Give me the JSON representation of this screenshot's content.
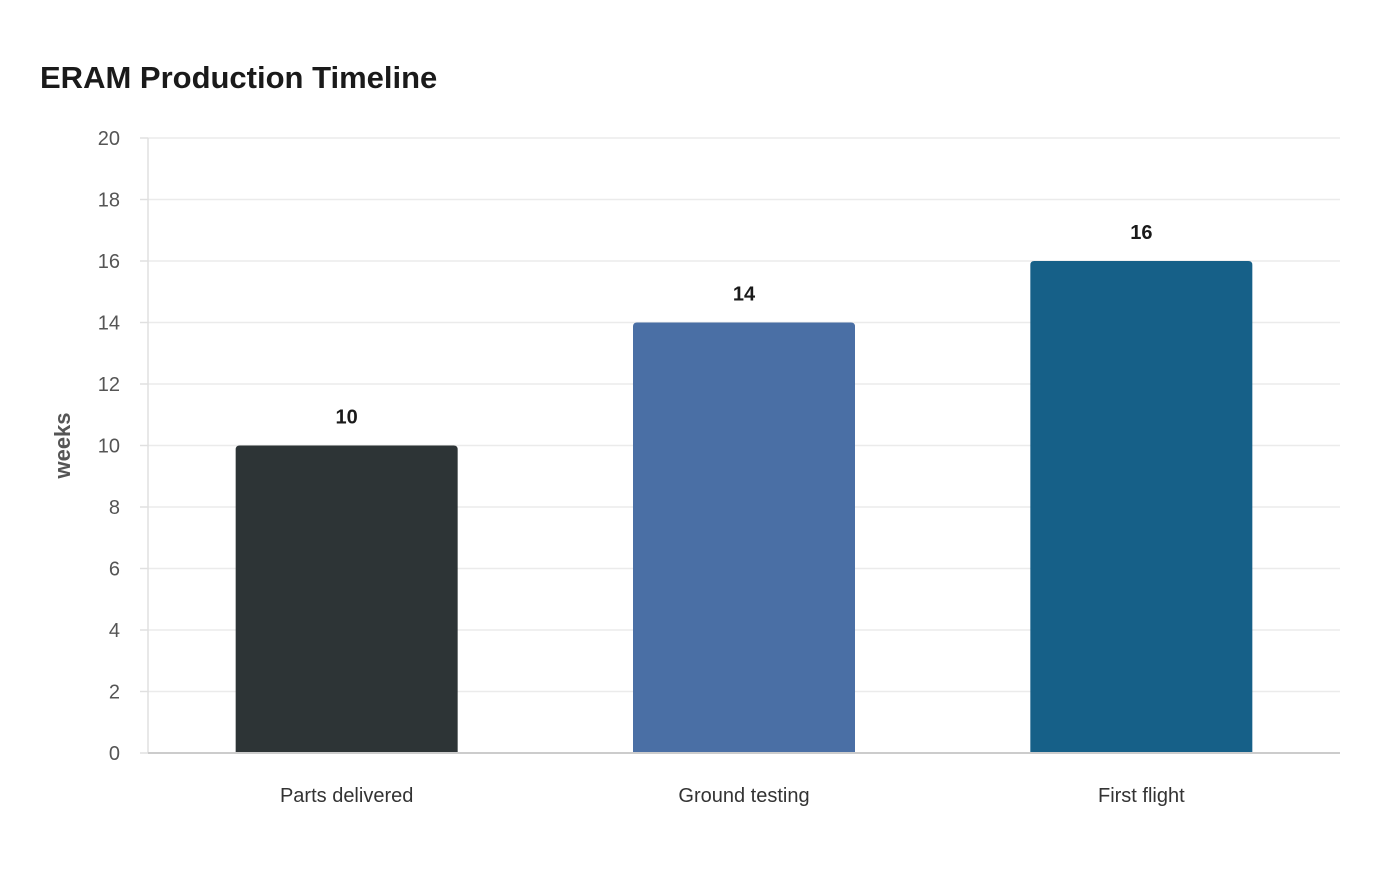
{
  "chart_data": {
    "type": "bar",
    "title": "ERAM Production Timeline",
    "xlabel": "",
    "ylabel": "weeks",
    "categories": [
      "Parts delivered",
      "Ground testing",
      "First flight"
    ],
    "values": [
      10,
      14,
      16
    ],
    "data_labels": [
      "10",
      "14",
      "16"
    ],
    "colors": [
      "#2d3436",
      "#4a6fa5",
      "#166088"
    ],
    "ylim": [
      0,
      20
    ],
    "yticks": [
      0,
      2,
      4,
      6,
      8,
      10,
      12,
      14,
      16,
      18,
      20
    ],
    "ytick_labels": [
      "0",
      "2",
      "4",
      "6",
      "8",
      "10",
      "12",
      "14",
      "16",
      "18",
      "20"
    ],
    "grid": true,
    "legend": "none"
  }
}
